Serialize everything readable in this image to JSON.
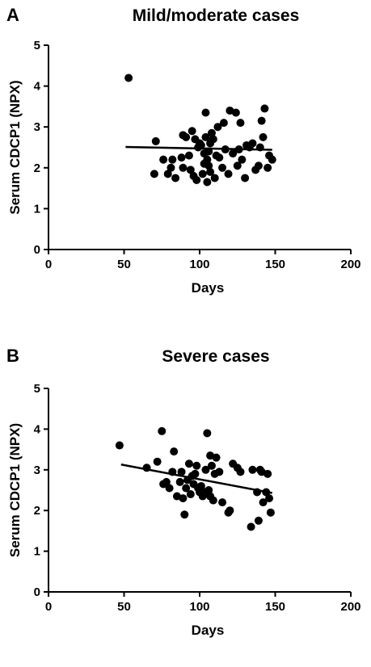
{
  "chart_data": [
    {
      "type": "scatter",
      "panel_label": "A",
      "title": "Mild/moderate cases",
      "xlabel": "Days",
      "ylabel": "Serum CDCP1 (NPX)",
      "xlim": [
        0,
        200
      ],
      "ylim": [
        0,
        5
      ],
      "xticks": [
        "0",
        "50",
        "100",
        "150",
        "200"
      ],
      "yticks": [
        "0",
        "1",
        "2",
        "3",
        "4",
        "5"
      ],
      "grid": false,
      "marker_color": "#000000",
      "points": [
        [
          53,
          4.2
        ],
        [
          70,
          1.85
        ],
        [
          71,
          2.65
        ],
        [
          76,
          2.2
        ],
        [
          79,
          1.85
        ],
        [
          81,
          2.0
        ],
        [
          82,
          2.2
        ],
        [
          84,
          1.75
        ],
        [
          88,
          2.25
        ],
        [
          89,
          2.0
        ],
        [
          89,
          2.8
        ],
        [
          91,
          2.75
        ],
        [
          93,
          2.3
        ],
        [
          94,
          1.95
        ],
        [
          95,
          2.9
        ],
        [
          96,
          1.8
        ],
        [
          97,
          2.7
        ],
        [
          98,
          1.7
        ],
        [
          99,
          2.5
        ],
        [
          100,
          2.6
        ],
        [
          101,
          2.55
        ],
        [
          102,
          1.85
        ],
        [
          103,
          2.1
        ],
        [
          103,
          2.35
        ],
        [
          104,
          2.75
        ],
        [
          104,
          3.35
        ],
        [
          105,
          1.65
        ],
        [
          105,
          2.2
        ],
        [
          106,
          2.05
        ],
        [
          106,
          2.4
        ],
        [
          107,
          1.9
        ],
        [
          107,
          2.6
        ],
        [
          108,
          2.85
        ],
        [
          109,
          2.7
        ],
        [
          110,
          1.75
        ],
        [
          111,
          2.3
        ],
        [
          112,
          3.0
        ],
        [
          113,
          2.25
        ],
        [
          115,
          2.0
        ],
        [
          116,
          3.1
        ],
        [
          117,
          2.45
        ],
        [
          119,
          1.85
        ],
        [
          120,
          3.4
        ],
        [
          122,
          2.35
        ],
        [
          124,
          3.35
        ],
        [
          125,
          2.05
        ],
        [
          126,
          2.45
        ],
        [
          127,
          3.1
        ],
        [
          128,
          2.2
        ],
        [
          130,
          1.75
        ],
        [
          131,
          2.55
        ],
        [
          133,
          2.5
        ],
        [
          135,
          2.6
        ],
        [
          137,
          1.95
        ],
        [
          139,
          2.05
        ],
        [
          140,
          2.5
        ],
        [
          141,
          3.15
        ],
        [
          142,
          2.75
        ],
        [
          143,
          3.45
        ],
        [
          145,
          2.0
        ],
        [
          146,
          2.3
        ],
        [
          148,
          2.2
        ]
      ],
      "fit_line": {
        "x": [
          51,
          148
        ],
        "y": [
          2.51,
          2.44
        ]
      }
    },
    {
      "type": "scatter",
      "panel_label": "B",
      "title": "Severe cases",
      "xlabel": "Days",
      "ylabel": "Serum CDCP1 (NPX)",
      "xlim": [
        0,
        200
      ],
      "ylim": [
        0,
        5
      ],
      "xticks": [
        "0",
        "50",
        "100",
        "150",
        "200"
      ],
      "yticks": [
        "0",
        "1",
        "2",
        "3",
        "4",
        "5"
      ],
      "grid": false,
      "marker_color": "#000000",
      "points": [
        [
          47,
          3.6
        ],
        [
          65,
          3.05
        ],
        [
          72,
          3.2
        ],
        [
          75,
          3.95
        ],
        [
          76,
          2.65
        ],
        [
          78,
          2.7
        ],
        [
          80,
          2.55
        ],
        [
          82,
          2.95
        ],
        [
          83,
          3.45
        ],
        [
          85,
          2.35
        ],
        [
          87,
          2.7
        ],
        [
          88,
          2.95
        ],
        [
          89,
          2.3
        ],
        [
          90,
          1.9
        ],
        [
          91,
          2.55
        ],
        [
          92,
          2.75
        ],
        [
          93,
          3.15
        ],
        [
          94,
          2.4
        ],
        [
          95,
          2.85
        ],
        [
          96,
          2.65
        ],
        [
          97,
          2.9
        ],
        [
          98,
          3.1
        ],
        [
          99,
          2.55
        ],
        [
          100,
          2.45
        ],
        [
          101,
          2.6
        ],
        [
          102,
          2.35
        ],
        [
          103,
          2.45
        ],
        [
          104,
          3.0
        ],
        [
          105,
          3.9
        ],
        [
          106,
          2.5
        ],
        [
          107,
          2.35
        ],
        [
          107,
          3.35
        ],
        [
          108,
          3.1
        ],
        [
          109,
          2.25
        ],
        [
          110,
          2.9
        ],
        [
          111,
          3.3
        ],
        [
          113,
          2.95
        ],
        [
          115,
          2.2
        ],
        [
          119,
          1.95
        ],
        [
          120,
          2.0
        ],
        [
          122,
          3.15
        ],
        [
          125,
          3.05
        ],
        [
          127,
          2.95
        ],
        [
          134,
          1.6
        ],
        [
          135,
          3.0
        ],
        [
          138,
          2.45
        ],
        [
          139,
          1.75
        ],
        [
          140,
          3.0
        ],
        [
          141,
          2.95
        ],
        [
          142,
          2.2
        ],
        [
          144,
          2.45
        ],
        [
          145,
          2.9
        ],
        [
          146,
          2.3
        ],
        [
          147,
          1.95
        ]
      ],
      "fit_line": {
        "x": [
          48,
          148
        ],
        "y": [
          3.13,
          2.43
        ]
      }
    }
  ]
}
